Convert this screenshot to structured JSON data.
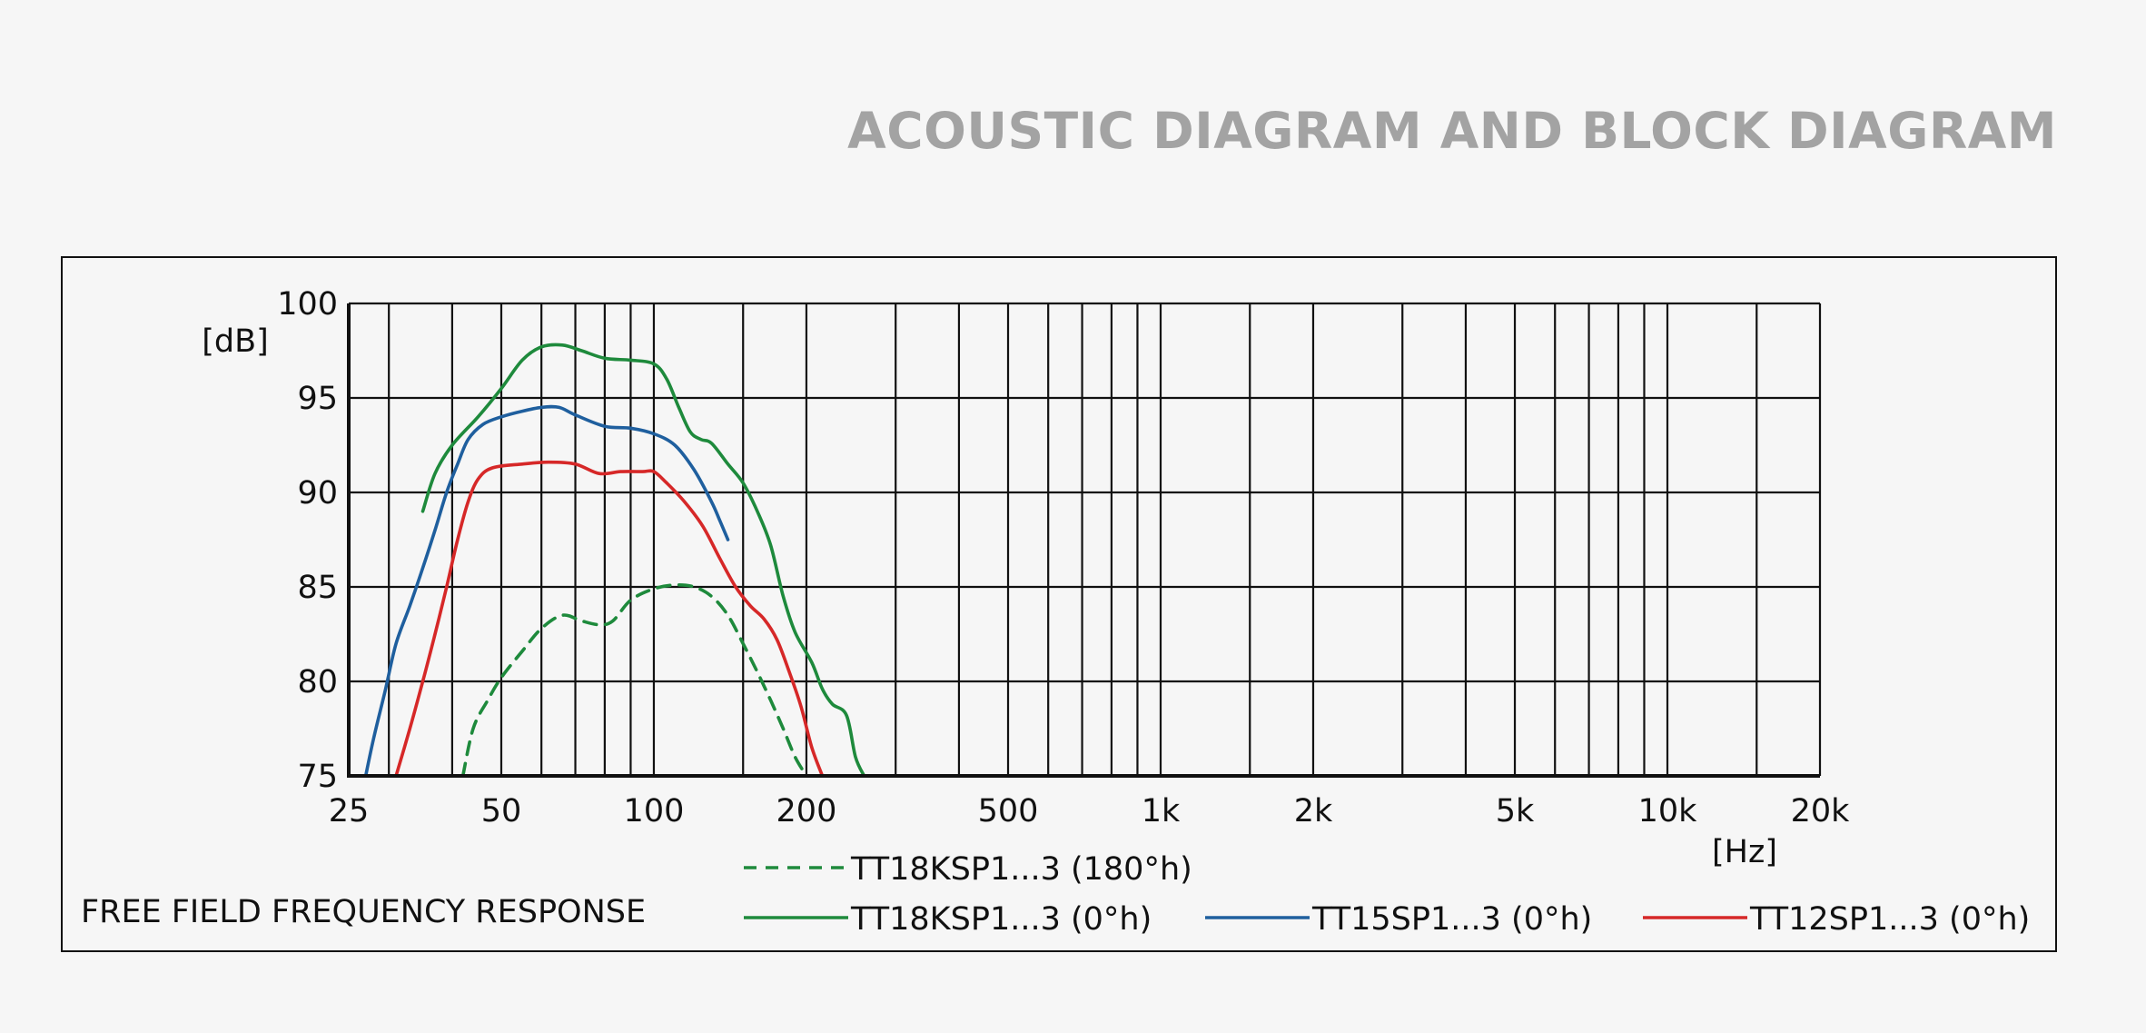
{
  "page": {
    "title": "ACOUSTIC DIAGRAM AND BLOCK DIAGRAM"
  },
  "chart_data": {
    "type": "line",
    "title": "FREE FIELD FREQUENCY RESPONSE",
    "xlabel": "[Hz]",
    "ylabel": "[dB]",
    "x_scale": "log",
    "xlim": [
      25,
      20000
    ],
    "ylim": [
      75,
      100
    ],
    "grid": true,
    "legend_placement": "bottom",
    "x_ticks": [
      {
        "value": 25,
        "label": "25"
      },
      {
        "value": 50,
        "label": "50"
      },
      {
        "value": 100,
        "label": "100"
      },
      {
        "value": 200,
        "label": "200"
      },
      {
        "value": 500,
        "label": "500"
      },
      {
        "value": 1000,
        "label": "1k"
      },
      {
        "value": 2000,
        "label": "2k"
      },
      {
        "value": 5000,
        "label": "5k"
      },
      {
        "value": 10000,
        "label": "10k"
      },
      {
        "value": 20000,
        "label": "20k"
      }
    ],
    "x_gridlines": [
      30,
      40,
      50,
      60,
      70,
      80,
      90,
      100,
      150,
      200,
      300,
      400,
      500,
      600,
      700,
      800,
      900,
      1000,
      1500,
      2000,
      3000,
      4000,
      5000,
      6000,
      7000,
      8000,
      9000,
      10000,
      15000,
      20000
    ],
    "y_ticks": [
      {
        "value": 75,
        "label": "75"
      },
      {
        "value": 80,
        "label": "80"
      },
      {
        "value": 85,
        "label": "85"
      },
      {
        "value": 90,
        "label": "90"
      },
      {
        "value": 95,
        "label": "95"
      },
      {
        "value": 100,
        "label": "100"
      }
    ],
    "series": [
      {
        "name": "TT18KSP1...3 (180°h)",
        "color": "#1e8a3c",
        "style": "dashed",
        "points": [
          [
            42,
            75
          ],
          [
            44,
            77.5
          ],
          [
            47,
            79
          ],
          [
            50,
            80.2
          ],
          [
            55,
            81.6
          ],
          [
            60,
            82.8
          ],
          [
            66,
            83.5
          ],
          [
            72,
            83.2
          ],
          [
            78,
            83
          ],
          [
            83,
            83.2
          ],
          [
            90,
            84.3
          ],
          [
            100,
            84.9
          ],
          [
            110,
            85.1
          ],
          [
            120,
            85
          ],
          [
            130,
            84.5
          ],
          [
            140,
            83.5
          ],
          [
            150,
            82
          ],
          [
            160,
            80.5
          ],
          [
            170,
            79
          ],
          [
            180,
            77.5
          ],
          [
            190,
            76
          ],
          [
            200,
            75
          ]
        ]
      },
      {
        "name": "TT18KSP1...3 (0°h)",
        "color": "#1e8a3c",
        "style": "solid",
        "points": [
          [
            35,
            89
          ],
          [
            37,
            91
          ],
          [
            40,
            92.5
          ],
          [
            45,
            94
          ],
          [
            50,
            95.5
          ],
          [
            55,
            97
          ],
          [
            60,
            97.7
          ],
          [
            66,
            97.8
          ],
          [
            72,
            97.5
          ],
          [
            80,
            97.1
          ],
          [
            90,
            97
          ],
          [
            100,
            96.8
          ],
          [
            106,
            96
          ],
          [
            112,
            94.5
          ],
          [
            118,
            93.2
          ],
          [
            124,
            92.8
          ],
          [
            130,
            92.6
          ],
          [
            140,
            91.5
          ],
          [
            150,
            90.5
          ],
          [
            160,
            89
          ],
          [
            170,
            87.2
          ],
          [
            180,
            84.5
          ],
          [
            190,
            82.6
          ],
          [
            205,
            81
          ],
          [
            215,
            79.6
          ],
          [
            225,
            78.8
          ],
          [
            240,
            78.2
          ],
          [
            250,
            76
          ],
          [
            260,
            75
          ]
        ]
      },
      {
        "name": "TT15SP1...3 (0°h)",
        "color": "#1f5f9e",
        "style": "solid",
        "points": [
          [
            27,
            75
          ],
          [
            28,
            77
          ],
          [
            29.5,
            79.5
          ],
          [
            31,
            82
          ],
          [
            33,
            84
          ],
          [
            35,
            86
          ],
          [
            37,
            88
          ],
          [
            39,
            90
          ],
          [
            41,
            91.5
          ],
          [
            43,
            92.8
          ],
          [
            46,
            93.6
          ],
          [
            50,
            94
          ],
          [
            55,
            94.3
          ],
          [
            60,
            94.5
          ],
          [
            65,
            94.5
          ],
          [
            70,
            94.1
          ],
          [
            80,
            93.5
          ],
          [
            90,
            93.4
          ],
          [
            100,
            93.1
          ],
          [
            110,
            92.5
          ],
          [
            120,
            91.2
          ],
          [
            130,
            89.5
          ],
          [
            135,
            88.5
          ],
          [
            140,
            87.5
          ]
        ]
      },
      {
        "name": "TT12SP1...3 (0°h)",
        "color": "#d62828",
        "style": "solid",
        "points": [
          [
            31,
            75
          ],
          [
            33,
            77.5
          ],
          [
            35,
            80
          ],
          [
            37,
            82.5
          ],
          [
            39,
            85
          ],
          [
            41,
            87.5
          ],
          [
            43,
            89.5
          ],
          [
            45,
            90.7
          ],
          [
            48,
            91.3
          ],
          [
            55,
            91.5
          ],
          [
            62,
            91.6
          ],
          [
            70,
            91.5
          ],
          [
            78,
            91
          ],
          [
            86,
            91.1
          ],
          [
            95,
            91.1
          ],
          [
            100,
            91.1
          ],
          [
            106,
            90.5
          ],
          [
            115,
            89.5
          ],
          [
            125,
            88.2
          ],
          [
            135,
            86.5
          ],
          [
            145,
            85
          ],
          [
            155,
            84
          ],
          [
            165,
            83.3
          ],
          [
            175,
            82.2
          ],
          [
            185,
            80.5
          ],
          [
            195,
            78.7
          ],
          [
            205,
            76.5
          ],
          [
            215,
            75
          ]
        ]
      }
    ]
  }
}
